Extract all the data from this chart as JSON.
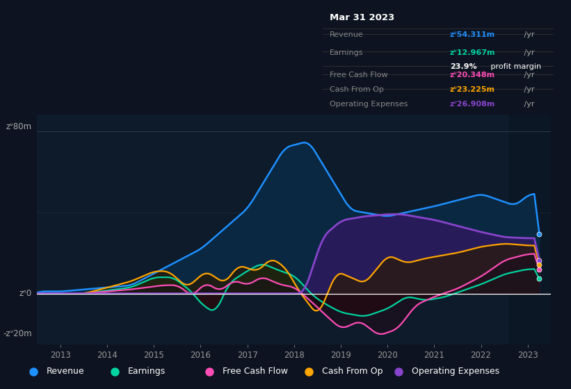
{
  "bg_color": "#0d1320",
  "plot_bg_color": "#0d1b2a",
  "tooltip": {
    "date": "Mar 31 2023",
    "revenue_label": "Revenue",
    "revenue_val": "zᐡ54.311m",
    "earnings_label": "Earnings",
    "earnings_val": "zᐡ12.967m",
    "profit_margin": "23.9%",
    "fcf_label": "Free Cash Flow",
    "fcf_val": "zᐡ20.348m",
    "cop_label": "Cash From Op",
    "cop_val": "zᐡ23.225m",
    "opex_label": "Operating Expenses",
    "opex_val": "zᐡ26.908m"
  },
  "colors": {
    "revenue": "#1e90ff",
    "earnings": "#00d4a0",
    "fcf": "#ff4db8",
    "cashfromop": "#ffa500",
    "opex": "#8844cc",
    "revenue_fill": "#0a2a45",
    "earnings_fill_pos": "#0a3a2a",
    "earnings_fill_neg": "#2a0a0a",
    "opex_fill": "#2d1a5e",
    "cop_fill_pos": "#2a1a00",
    "fcf_fill_neg": "#200a18"
  },
  "legend": [
    {
      "label": "Revenue",
      "color": "#1e90ff"
    },
    {
      "label": "Earnings",
      "color": "#00d4a0"
    },
    {
      "label": "Free Cash Flow",
      "color": "#ff4db8"
    },
    {
      "label": "Cash From Op",
      "color": "#ffa500"
    },
    {
      "label": "Operating Expenses",
      "color": "#8844cc"
    }
  ],
  "xmin": 2012.5,
  "xmax": 2023.5,
  "ymin": -25,
  "ymax": 88,
  "ylabel_80": "zᐡ80m",
  "ylabel_0": "zᐢ0",
  "ylabel_neg20": "-zᐡ20m"
}
